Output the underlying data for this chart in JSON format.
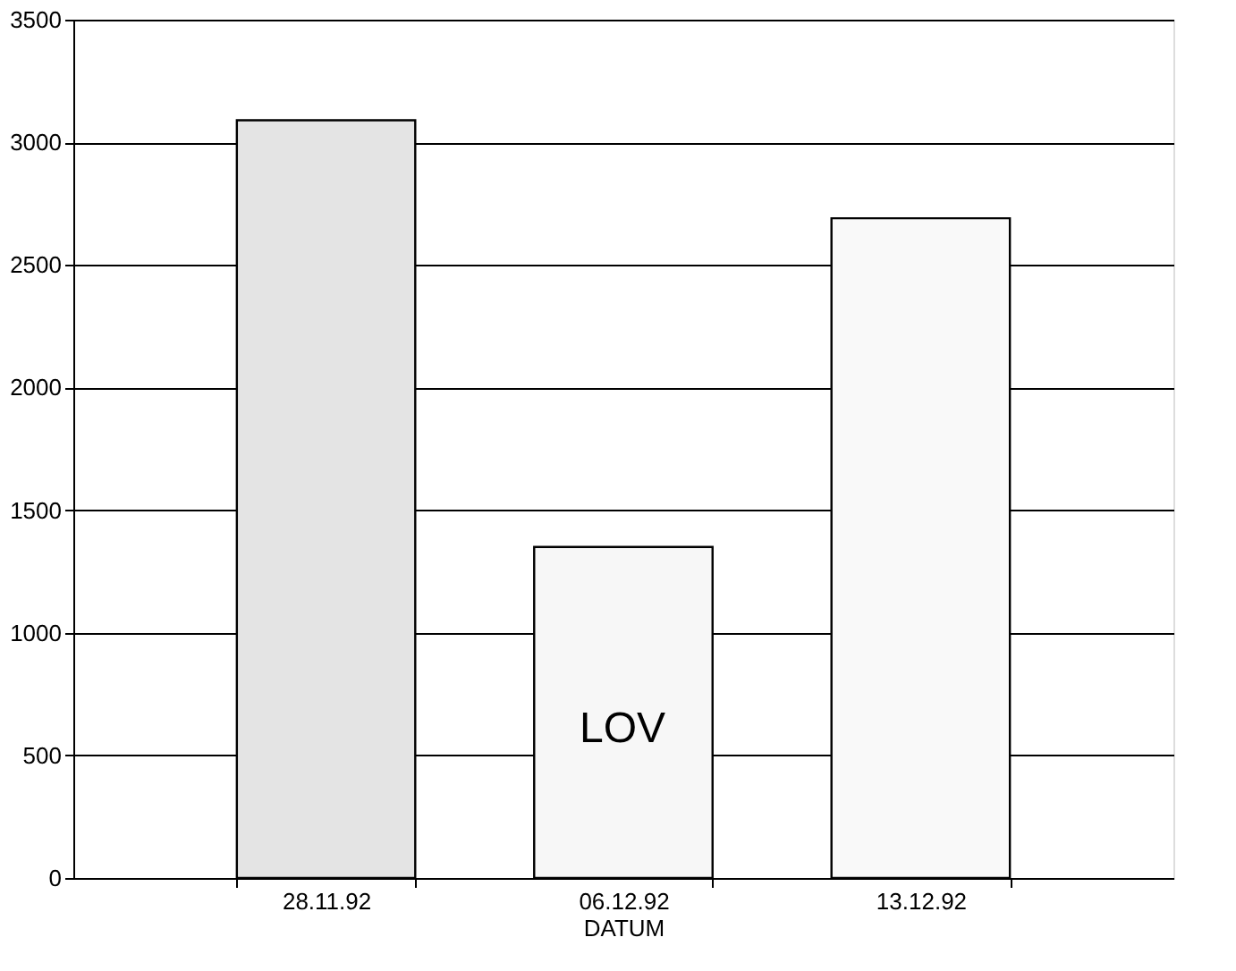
{
  "chart_data": {
    "type": "bar",
    "xlabel": "DATUM",
    "categories": [
      "28.11.92",
      "06.12.92",
      "13.12.92"
    ],
    "values": [
      3090,
      1350,
      2690
    ],
    "colors": [
      "#e4e4e4",
      "#f7f7f7",
      "#f9f9f9"
    ],
    "ylim": [
      0,
      3500
    ],
    "yticks": [
      0,
      500,
      1000,
      1500,
      2000,
      2500,
      3000,
      3500
    ],
    "grid": "y",
    "annotations": [
      "LOV"
    ]
  }
}
